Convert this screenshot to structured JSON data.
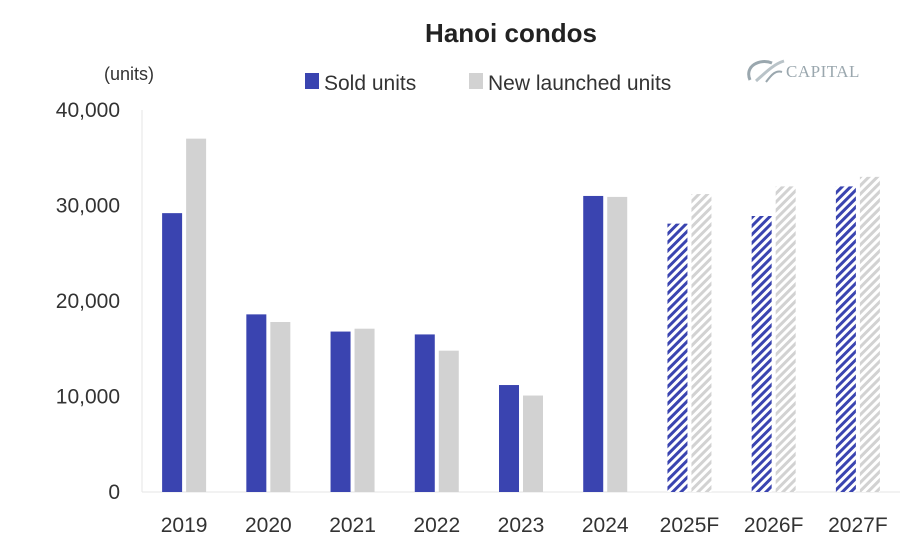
{
  "logo": {
    "text": "CAPITAL",
    "color": "#9aa7ae"
  },
  "chart_data": {
    "type": "bar",
    "title": "Hanoi condos",
    "unit_label": "(units)",
    "categories": [
      "2019",
      "2020",
      "2021",
      "2022",
      "2023",
      "2024",
      "2025F",
      "2026F",
      "2027F"
    ],
    "forecast_categories": [
      "2025F",
      "2026F",
      "2027F"
    ],
    "series": [
      {
        "name": "Sold units",
        "color": "#3a44b0",
        "values": [
          29200,
          18600,
          16800,
          16500,
          11200,
          31000,
          28100,
          28900,
          32000
        ]
      },
      {
        "name": "New launched units",
        "color": "#d2d2d2",
        "values": [
          37000,
          17800,
          17100,
          14800,
          10100,
          30900,
          31200,
          32000,
          33000
        ]
      }
    ],
    "ylim": [
      0,
      40000
    ],
    "yticks": [
      "0",
      "10,000",
      "20,000",
      "30,000",
      "40,000"
    ],
    "ytick_values": [
      0,
      10000,
      20000,
      30000,
      40000
    ],
    "legend_placement": "top-center",
    "grid": false
  }
}
